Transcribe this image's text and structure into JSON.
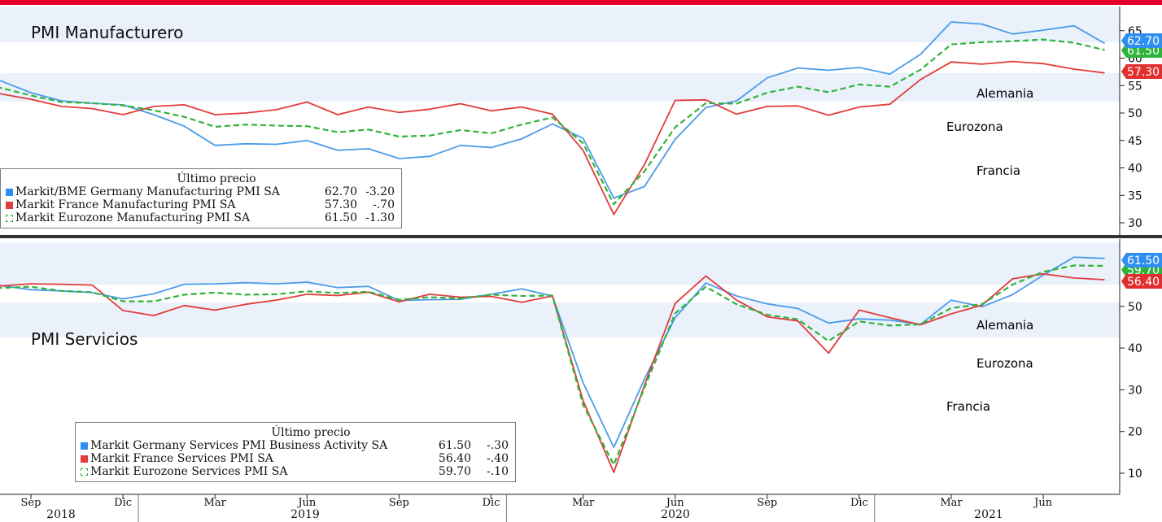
{
  "colors": {
    "germany": "#4a9ce8",
    "france": "#e23b3b",
    "eurozone": "#2fb33a",
    "top_bar": "#e4002b",
    "band": "#eaf1fb"
  },
  "x_axis": {
    "ticks": [
      "Sep",
      "Dic",
      "Mar",
      "Jun",
      "Sep",
      "Dic",
      "Mar",
      "Jun",
      "Sep",
      "Dic",
      "Mar",
      "Jun"
    ],
    "years": [
      "2018",
      "2019",
      "2020",
      "2021"
    ]
  },
  "top_panel": {
    "title": "PMI Manufacturero",
    "y_ticks": [
      "30",
      "35",
      "40",
      "45",
      "50",
      "55",
      "60",
      "65"
    ],
    "series_labels": {
      "germany": "Alemania",
      "eurozone": "Eurozona",
      "france": "Francia"
    },
    "last_values": {
      "germany": "62.70",
      "eurozone": "61.50",
      "france": "57.30"
    },
    "legend": {
      "header": "Último precio",
      "rows": [
        {
          "name": "Markit/BME Germany Manufacturing PMI SA",
          "value": "62.70",
          "change": "-3.20"
        },
        {
          "name": "Markit France Manufacturing PMI SA",
          "value": "57.30",
          "change": "-.70"
        },
        {
          "name": "Markit Eurozone Manufacturing PMI SA",
          "value": "61.50",
          "change": "-1.30"
        }
      ]
    }
  },
  "bottom_panel": {
    "title": "PMI Servicios",
    "y_ticks": [
      "10",
      "20",
      "30",
      "40",
      "50"
    ],
    "series_labels": {
      "germany": "Alemania",
      "eurozone": "Eurozona",
      "france": "Francia"
    },
    "last_values": {
      "germany": "61.50",
      "eurozone": "59.70",
      "france": "56.40"
    },
    "legend": {
      "header": "Último precio",
      "rows": [
        {
          "name": "Markit Germany Services PMI Business Activity SA",
          "value": "61.50",
          "change": "-.30"
        },
        {
          "name": "Markit France Services PMI SA",
          "value": "56.40",
          "change": "-.40"
        },
        {
          "name": "Markit Eurozone Services PMI SA",
          "value": "59.70",
          "change": "-.10"
        }
      ]
    }
  },
  "chart_data": [
    {
      "type": "line",
      "title": "PMI Manufacturero",
      "x": [
        "2018-07",
        "2018-08",
        "2018-09",
        "2018-10",
        "2018-11",
        "2018-12",
        "2019-01",
        "2019-02",
        "2019-03",
        "2019-04",
        "2019-05",
        "2019-06",
        "2019-07",
        "2019-08",
        "2019-09",
        "2019-10",
        "2019-11",
        "2019-12",
        "2020-01",
        "2020-02",
        "2020-03",
        "2020-04",
        "2020-05",
        "2020-06",
        "2020-07",
        "2020-08",
        "2020-09",
        "2020-10",
        "2020-11",
        "2020-12",
        "2021-01",
        "2021-02",
        "2021-03",
        "2021-04",
        "2021-05",
        "2021-06",
        "2021-07",
        "2021-08"
      ],
      "ylim": [
        28,
        67
      ],
      "series": [
        {
          "name": "Markit/BME Germany Manufacturing PMI SA",
          "values": [
            56.9,
            55.9,
            53.7,
            52.2,
            51.8,
            51.5,
            49.7,
            47.6,
            44.1,
            44.4,
            44.3,
            45.0,
            43.2,
            43.5,
            41.7,
            42.1,
            44.1,
            43.7,
            45.3,
            48.0,
            45.4,
            34.5,
            36.6,
            45.2,
            51.0,
            52.2,
            56.4,
            58.2,
            57.8,
            58.3,
            57.1,
            60.7,
            66.6,
            66.2,
            64.4,
            65.1,
            65.9,
            62.7
          ]
        },
        {
          "name": "Markit France Manufacturing PMI SA",
          "values": [
            53.7,
            53.5,
            52.5,
            51.2,
            50.8,
            49.7,
            51.2,
            51.5,
            49.7,
            50.0,
            50.6,
            52.0,
            49.7,
            51.1,
            50.1,
            50.7,
            51.7,
            50.4,
            51.1,
            49.8,
            43.2,
            31.5,
            40.6,
            52.3,
            52.4,
            49.8,
            51.2,
            51.3,
            49.6,
            51.1,
            51.6,
            56.1,
            59.3,
            58.9,
            59.4,
            59.0,
            58.0,
            57.3
          ]
        },
        {
          "name": "Markit Eurozone Manufacturing PMI SA",
          "values": [
            55.1,
            54.6,
            53.2,
            52.0,
            51.8,
            51.4,
            50.5,
            49.3,
            47.5,
            47.9,
            47.7,
            47.6,
            46.5,
            47.0,
            45.7,
            45.9,
            46.9,
            46.3,
            47.9,
            49.2,
            44.5,
            33.4,
            39.4,
            47.4,
            51.8,
            51.7,
            53.7,
            54.8,
            53.8,
            55.2,
            54.8,
            57.9,
            62.5,
            62.9,
            63.1,
            63.4,
            62.8,
            61.5
          ]
        }
      ]
    },
    {
      "type": "line",
      "title": "PMI Servicios",
      "x": [
        "2018-07",
        "2018-08",
        "2018-09",
        "2018-10",
        "2018-11",
        "2018-12",
        "2019-01",
        "2019-02",
        "2019-03",
        "2019-04",
        "2019-05",
        "2019-06",
        "2019-07",
        "2019-08",
        "2019-09",
        "2019-10",
        "2019-11",
        "2019-12",
        "2020-01",
        "2020-02",
        "2020-03",
        "2020-04",
        "2020-05",
        "2020-06",
        "2020-07",
        "2020-08",
        "2020-09",
        "2020-10",
        "2020-11",
        "2020-12",
        "2021-01",
        "2021-02",
        "2021-03",
        "2021-04",
        "2021-05",
        "2021-06",
        "2021-07",
        "2021-08"
      ],
      "ylim": [
        5,
        65
      ],
      "series": [
        {
          "name": "Markit Germany Services PMI Business Activity SA",
          "values": [
            54.1,
            55.0,
            54.0,
            53.7,
            53.3,
            51.8,
            53.0,
            55.3,
            55.4,
            55.7,
            55.4,
            55.8,
            54.5,
            54.8,
            51.4,
            51.6,
            51.7,
            52.9,
            54.2,
            52.5,
            31.7,
            16.2,
            32.6,
            47.3,
            55.6,
            52.5,
            50.6,
            49.5,
            46.0,
            47.0,
            46.7,
            45.7,
            51.5,
            49.9,
            52.8,
            57.5,
            61.8,
            61.5
          ]
        },
        {
          "name": "Markit France Services PMI SA",
          "values": [
            55.3,
            54.9,
            55.4,
            55.3,
            55.1,
            49.0,
            47.8,
            50.2,
            49.1,
            50.5,
            51.5,
            52.9,
            52.6,
            53.4,
            51.1,
            52.9,
            52.2,
            52.4,
            51.0,
            52.5,
            27.4,
            10.2,
            31.1,
            50.7,
            57.3,
            51.5,
            47.5,
            46.5,
            38.8,
            49.1,
            47.3,
            45.6,
            48.2,
            50.3,
            56.6,
            57.8,
            56.8,
            56.4
          ]
        },
        {
          "name": "Markit Eurozone Services PMI SA",
          "values": [
            54.2,
            54.4,
            54.7,
            53.7,
            53.4,
            51.2,
            51.2,
            52.8,
            53.3,
            52.8,
            52.9,
            53.6,
            53.2,
            53.5,
            51.6,
            52.2,
            51.9,
            52.8,
            52.5,
            52.6,
            26.4,
            12.0,
            30.5,
            48.3,
            54.7,
            50.5,
            48.0,
            46.9,
            41.7,
            46.4,
            45.4,
            45.7,
            49.6,
            50.5,
            55.2,
            58.3,
            59.8,
            59.7
          ]
        }
      ]
    }
  ]
}
